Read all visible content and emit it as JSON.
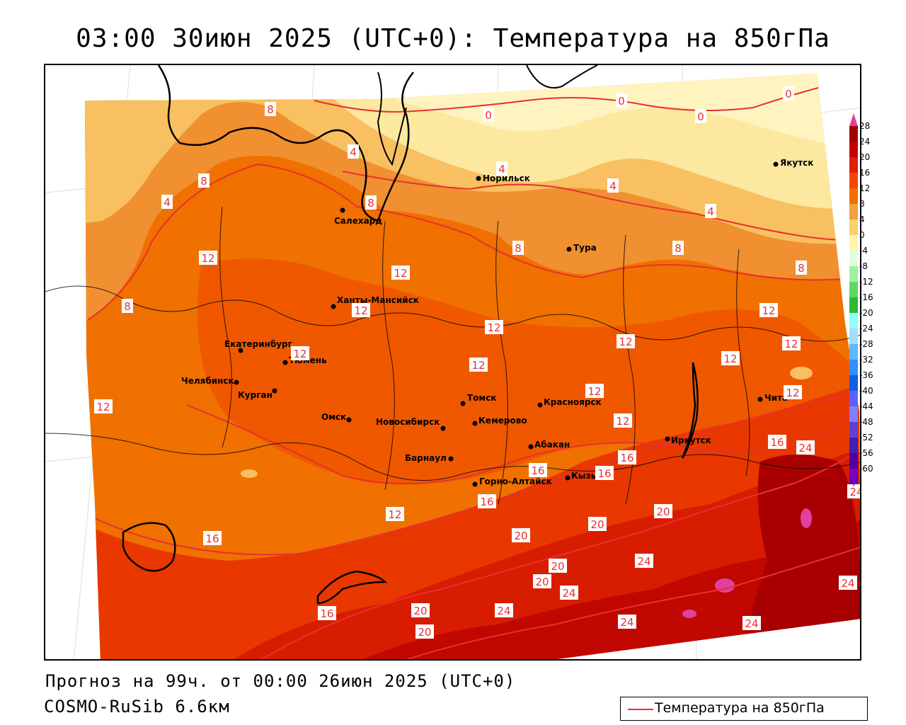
{
  "title": "03:00 30июн 2025 (UTC+0): Температура на 850гПа",
  "forecast": "Прогноз на 99ч. от 00:00 26июн 2025 (UTC+0)",
  "model": "COSMO-RuSib 6.6км",
  "legend": {
    "label": "Температура на 850гПа",
    "line_color": "#e83030"
  },
  "scale": {
    "labels": [
      "28",
      "24",
      "20",
      "16",
      "12",
      "8",
      "4",
      "0",
      "-4",
      "-8",
      "-12",
      "-16",
      "-20",
      "-24",
      "-28",
      "-32",
      "-36",
      "-40",
      "-44",
      "-48",
      "-52",
      "-56",
      "-60"
    ],
    "colors": [
      "#a00000",
      "#c80000",
      "#e02000",
      "#f04800",
      "#f07000",
      "#f0a040",
      "#f8d070",
      "#fff4b0",
      "#e0ffe0",
      "#a0f0a0",
      "#60d860",
      "#30b830",
      "#90ffff",
      "#a0e0ff",
      "#60b8ff",
      "#3090ff",
      "#1060e0",
      "#6060ff",
      "#8080ff",
      "#6040d0",
      "#4020b0",
      "#5000a0",
      "#6000c0"
    ],
    "top_arrow_color": "#e040a0",
    "bottom_arrow_color": "#8000c0"
  },
  "cities": [
    {
      "name": "Норильск"
    },
    {
      "name": "Якутск"
    },
    {
      "name": "Салехард"
    },
    {
      "name": "Тура"
    },
    {
      "name": "Ханты-Мансийск"
    },
    {
      "name": "Екатеринбург"
    },
    {
      "name": "Тюмень"
    },
    {
      "name": "Челябинск"
    },
    {
      "name": "Курган"
    },
    {
      "name": "Омск"
    },
    {
      "name": "Новосибирск"
    },
    {
      "name": "Томск"
    },
    {
      "name": "Кемерово"
    },
    {
      "name": "Красноярск"
    },
    {
      "name": "Барнаул"
    },
    {
      "name": "Абакан"
    },
    {
      "name": "Иркутск"
    },
    {
      "name": "Чита"
    },
    {
      "name": "Горно-Алтайск"
    },
    {
      "name": "Кызыл"
    }
  ],
  "isotherm_labels": [
    {
      "value": "8"
    },
    {
      "value": "0"
    },
    {
      "value": "0"
    },
    {
      "value": "0"
    },
    {
      "value": "0"
    },
    {
      "value": "4"
    },
    {
      "value": "4"
    },
    {
      "value": "4"
    },
    {
      "value": "4"
    },
    {
      "value": "4"
    },
    {
      "value": "8"
    },
    {
      "value": "8"
    },
    {
      "value": "8"
    },
    {
      "value": "8"
    },
    {
      "value": "8"
    },
    {
      "value": "8"
    },
    {
      "value": "12"
    },
    {
      "value": "12"
    },
    {
      "value": "12"
    },
    {
      "value": "12"
    },
    {
      "value": "12"
    },
    {
      "value": "12"
    },
    {
      "value": "12"
    },
    {
      "value": "12"
    },
    {
      "value": "12"
    },
    {
      "value": "12"
    },
    {
      "value": "12"
    },
    {
      "value": "12"
    },
    {
      "value": "12"
    },
    {
      "value": "12"
    },
    {
      "value": "12"
    },
    {
      "value": "16"
    },
    {
      "value": "16"
    },
    {
      "value": "16"
    },
    {
      "value": "16"
    },
    {
      "value": "16"
    },
    {
      "value": "16"
    },
    {
      "value": "16"
    },
    {
      "value": "20"
    },
    {
      "value": "20"
    },
    {
      "value": "20"
    },
    {
      "value": "20"
    },
    {
      "value": "20"
    },
    {
      "value": "20"
    },
    {
      "value": "20"
    },
    {
      "value": "24"
    },
    {
      "value": "24"
    },
    {
      "value": "24"
    },
    {
      "value": "24"
    },
    {
      "value": "24"
    },
    {
      "value": "24"
    },
    {
      "value": "24"
    },
    {
      "value": "24"
    }
  ]
}
